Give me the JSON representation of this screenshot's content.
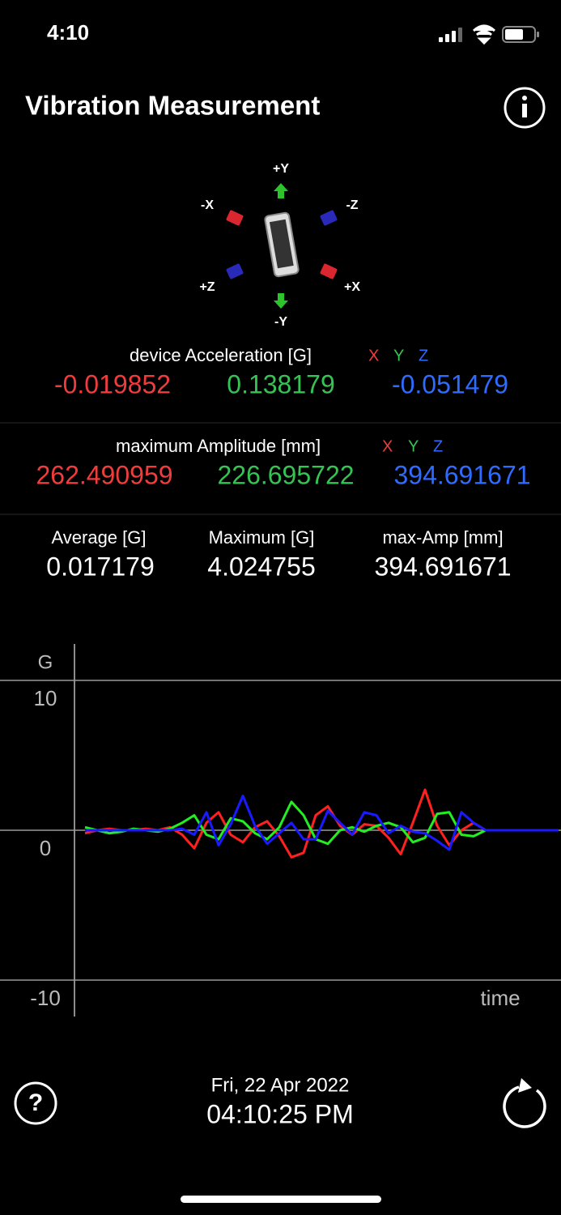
{
  "status_bar": {
    "time": "4:10"
  },
  "header": {
    "title": "Vibration Measurement"
  },
  "orientation": {
    "labels": [
      "+Y",
      "-X",
      "-Z",
      "+Z",
      "+X",
      "-Y"
    ]
  },
  "acceleration": {
    "label": "device Acceleration [G]",
    "axes": [
      "X",
      "Y",
      "Z"
    ],
    "values": [
      "-0.019852",
      "0.138179",
      "-0.051479"
    ]
  },
  "amplitude": {
    "label": "maximum Amplitude [mm]",
    "axes": [
      "X",
      "Y",
      "Z"
    ],
    "values": [
      "262.490959",
      "226.695722",
      "394.691671"
    ]
  },
  "stats": [
    {
      "label": "Average [G]",
      "value": "0.017179"
    },
    {
      "label": "Maximum [G]",
      "value": "4.024755"
    },
    {
      "label": "max-Amp [mm]",
      "value": "394.691671"
    }
  ],
  "chart_data": {
    "type": "line",
    "y_label": "G",
    "x_label": "time",
    "ylim": [
      -10,
      10
    ],
    "yticks": [
      -10,
      0,
      10
    ],
    "grid": true,
    "series": [
      {
        "color": "#ff2020",
        "values": [
          -0.2,
          0,
          0.1,
          0,
          0,
          0.1,
          0,
          0.2,
          -0.3,
          -1.2,
          0.5,
          1.2,
          -0.3,
          -0.8,
          0.2,
          0.6,
          -0.4,
          -1.8,
          -1.5,
          1.0,
          1.6,
          0.3,
          -0.3,
          0.4,
          0.3,
          -0.5,
          -1.6,
          0.5,
          2.7,
          0.3,
          -1.0,
          0,
          0.5,
          0,
          0,
          0,
          0,
          0,
          0,
          0
        ]
      },
      {
        "color": "#22ee22",
        "values": [
          0.2,
          0,
          -0.2,
          -0.1,
          0.1,
          0,
          -0.1,
          0.1,
          0.5,
          1.0,
          -0.3,
          -0.6,
          0.8,
          0.6,
          -0.2,
          -0.6,
          0.2,
          1.9,
          1.0,
          -0.6,
          -0.9,
          0,
          0.2,
          -0.1,
          0.3,
          0.5,
          0.2,
          -0.8,
          -0.5,
          1.1,
          1.2,
          -0.3,
          -0.4,
          0,
          0,
          0,
          0,
          0,
          0,
          0
        ]
      },
      {
        "color": "#1a1aff",
        "values": [
          0,
          0,
          0,
          0,
          0,
          0,
          0,
          0,
          0.1,
          -0.3,
          1.2,
          -1.0,
          0.4,
          2.3,
          0.3,
          -0.9,
          -0.2,
          0.5,
          -0.6,
          -0.6,
          1.3,
          0.5,
          -0.3,
          1.2,
          1.0,
          -0.2,
          0.3,
          -0.1,
          -0.2,
          -0.7,
          -1.3,
          1.2,
          0.5,
          0,
          0,
          0,
          0,
          0,
          0,
          0
        ]
      }
    ]
  },
  "footer": {
    "date": "Fri, 22 Apr 2022",
    "time": "04:10:25 PM"
  }
}
